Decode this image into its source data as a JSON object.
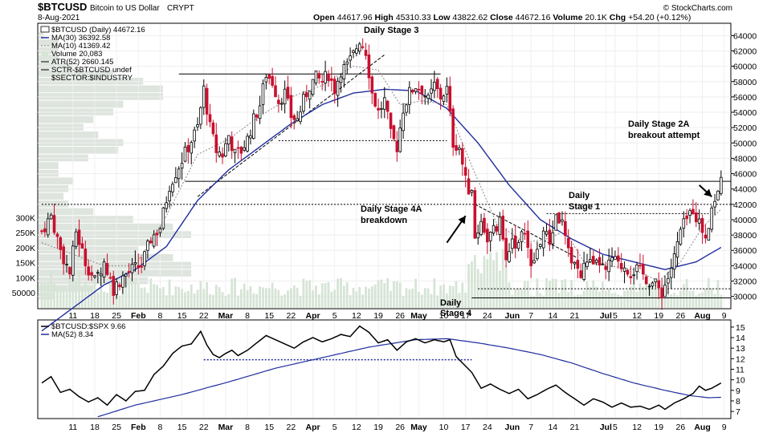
{
  "header": {
    "symbol": "$BTCUSD",
    "name": "Bitcoin to US Dollar",
    "exchange": "CRYPT",
    "date": "8-Aug-2021",
    "open_label": "Open",
    "open": "44617.96",
    "high_label": "High",
    "high": "45310.33",
    "low_label": "Low",
    "low": "43822.62",
    "close_label": "Close",
    "close": "44672.16",
    "volume_label": "Volume",
    "volume": "20.1K",
    "chg_label": "Chg",
    "chg": "+54.20 (+0.12%)",
    "copyright": "© StockCharts.com"
  },
  "legend": {
    "price": "$BTCUSD (Daily) 44672.16",
    "ma30": "MA(30) 36392.58",
    "ma10": "MA(10) 41369.42",
    "volume": "Volume 20,083",
    "atr": "ATR(52) 2660.145",
    "sctr": "SCTR-$BTCUSD undef",
    "sector": "$SECTOR:$INDUSTRY"
  },
  "lower_legend": {
    "ratio": "$BTCUSD:$SPX 9.66",
    "ma52": "MA(52) 8.34"
  },
  "annotations": {
    "stage3": "Daily Stage 3",
    "stage4a_1": "Daily Stage 4A",
    "stage4a_2": "breakdown",
    "stage1_1": "Daily",
    "stage1_2": "Stage 1",
    "stage2a_1": "Daily Stage 2A",
    "stage2a_2": "breakout attempt",
    "stage4_1": "Daily",
    "stage4_2": "Stage 4"
  },
  "colors": {
    "up": "#000000",
    "down": "#c8102e",
    "ma30": "#1f2d9e",
    "ma10": "#888888",
    "volume": "#d6e4d6",
    "vbp": "#d0d8d0"
  },
  "chart_data": [
    {
      "type": "candlestick",
      "title": "$BTCUSD (Daily)",
      "ylim": [
        28500,
        65500
      ],
      "y_ticks": [
        30000,
        32000,
        34000,
        36000,
        38000,
        40000,
        42000,
        44000,
        46000,
        48000,
        50000,
        52000,
        54000,
        56000,
        58000,
        60000,
        62000,
        64000
      ],
      "x_ticks": [
        {
          "label": "11",
          "day": 10
        },
        {
          "label": "18",
          "day": 17
        },
        {
          "label": "25",
          "day": 24
        },
        {
          "label": "Feb",
          "day": 31,
          "bold": true
        },
        {
          "label": "8",
          "day": 38
        },
        {
          "label": "15",
          "day": 45
        },
        {
          "label": "22",
          "day": 52
        },
        {
          "label": "Mar",
          "day": 59,
          "bold": true
        },
        {
          "label": "8",
          "day": 66
        },
        {
          "label": "15",
          "day": 73
        },
        {
          "label": "22",
          "day": 80
        },
        {
          "label": "Apr",
          "day": 87,
          "bold": true
        },
        {
          "label": "5",
          "day": 94
        },
        {
          "label": "12",
          "day": 101
        },
        {
          "label": "19",
          "day": 108
        },
        {
          "label": "26",
          "day": 115
        },
        {
          "label": "May",
          "day": 121,
          "bold": true
        },
        {
          "label": "10",
          "day": 129
        },
        {
          "label": "17",
          "day": 136
        },
        {
          "label": "24",
          "day": 143
        },
        {
          "label": "Jun",
          "day": 151,
          "bold": true
        },
        {
          "label": "7",
          "day": 157
        },
        {
          "label": "14",
          "day": 164
        },
        {
          "label": "21",
          "day": 171
        },
        {
          "label": "Jul",
          "day": 181,
          "bold": true
        },
        {
          "label": "5",
          "day": 184
        },
        {
          "label": "12",
          "day": 191
        },
        {
          "label": "19",
          "day": 198
        },
        {
          "label": "26",
          "day": 205
        },
        {
          "label": "Aug",
          "day": 212,
          "bold": true
        },
        {
          "label": "9",
          "day": 219
        }
      ],
      "anchors": [
        [
          0,
          38500
        ],
        [
          3,
          40500
        ],
        [
          6,
          36000
        ],
        [
          9,
          33000
        ],
        [
          11,
          38500
        ],
        [
          14,
          34500
        ],
        [
          17,
          32000
        ],
        [
          20,
          34500
        ],
        [
          23,
          31000
        ],
        [
          26,
          32500
        ],
        [
          29,
          33500
        ],
        [
          32,
          34000
        ],
        [
          35,
          37500
        ],
        [
          38,
          39000
        ],
        [
          41,
          44500
        ],
        [
          44,
          47000
        ],
        [
          47,
          49500
        ],
        [
          50,
          52000
        ],
        [
          52,
          57000
        ],
        [
          54,
          52000
        ],
        [
          56,
          49000
        ],
        [
          58,
          48500
        ],
        [
          60,
          51000
        ],
        [
          62,
          48500
        ],
        [
          64,
          49000
        ],
        [
          66,
          50500
        ],
        [
          68,
          53000
        ],
        [
          70,
          55000
        ],
        [
          72,
          59000
        ],
        [
          74,
          58000
        ],
        [
          76,
          55500
        ],
        [
          78,
          56500
        ],
        [
          80,
          53500
        ],
        [
          82,
          53000
        ],
        [
          84,
          55500
        ],
        [
          86,
          57500
        ],
        [
          88,
          58500
        ],
        [
          90,
          58000
        ],
        [
          92,
          59000
        ],
        [
          94,
          57000
        ],
        [
          96,
          59500
        ],
        [
          98,
          60000
        ],
        [
          100,
          61500
        ],
        [
          102,
          63500
        ],
        [
          104,
          62000
        ],
        [
          106,
          56500
        ],
        [
          108,
          54000
        ],
        [
          110,
          55500
        ],
        [
          112,
          51000
        ],
        [
          114,
          49500
        ],
        [
          116,
          54500
        ],
        [
          118,
          56500
        ],
        [
          120,
          57500
        ],
        [
          122,
          57000
        ],
        [
          124,
          55500
        ],
        [
          126,
          57500
        ],
        [
          128,
          56000
        ],
        [
          130,
          57000
        ],
        [
          132,
          50000
        ],
        [
          134,
          49500
        ],
        [
          136,
          45000
        ],
        [
          138,
          43000
        ],
        [
          139,
          37500
        ],
        [
          141,
          40000
        ],
        [
          143,
          37500
        ],
        [
          145,
          38500
        ],
        [
          147,
          39500
        ],
        [
          149,
          35500
        ],
        [
          151,
          37500
        ],
        [
          153,
          36500
        ],
        [
          155,
          39000
        ],
        [
          157,
          33500
        ],
        [
          159,
          36000
        ],
        [
          161,
          38500
        ],
        [
          163,
          37000
        ],
        [
          165,
          40500
        ],
        [
          167,
          39500
        ],
        [
          169,
          35500
        ],
        [
          171,
          34500
        ],
        [
          173,
          32500
        ],
        [
          175,
          35000
        ],
        [
          177,
          33500
        ],
        [
          179,
          34500
        ],
        [
          181,
          33000
        ],
        [
          183,
          35000
        ],
        [
          185,
          34000
        ],
        [
          187,
          34000
        ],
        [
          189,
          33200
        ],
        [
          191,
          33500
        ],
        [
          193,
          32800
        ],
        [
          195,
          32000
        ],
        [
          197,
          31500
        ],
        [
          199,
          30500
        ],
        [
          201,
          32500
        ],
        [
          203,
          35000
        ],
        [
          205,
          38500
        ],
        [
          207,
          40000
        ],
        [
          209,
          41500
        ],
        [
          211,
          39500
        ],
        [
          213,
          38000
        ],
        [
          215,
          41500
        ],
        [
          217,
          44000
        ],
        [
          218,
          44672
        ]
      ],
      "ma30_anchors": [
        [
          0,
          25500
        ],
        [
          10,
          28500
        ],
        [
          20,
          31500
        ],
        [
          30,
          33500
        ],
        [
          40,
          36500
        ],
        [
          50,
          42500
        ],
        [
          60,
          46500
        ],
        [
          70,
          49500
        ],
        [
          80,
          52500
        ],
        [
          90,
          55000
        ],
        [
          100,
          56500
        ],
        [
          110,
          57000
        ],
        [
          120,
          56800
        ],
        [
          130,
          54500
        ],
        [
          140,
          50000
        ],
        [
          150,
          44500
        ],
        [
          160,
          40000
        ],
        [
          170,
          37500
        ],
        [
          180,
          35500
        ],
        [
          190,
          34500
        ],
        [
          200,
          33500
        ],
        [
          210,
          34500
        ],
        [
          218,
          36392
        ]
      ],
      "ma10_anchors": [
        [
          0,
          37000
        ],
        [
          10,
          35500
        ],
        [
          20,
          34000
        ],
        [
          30,
          34000
        ],
        [
          40,
          40500
        ],
        [
          50,
          48500
        ],
        [
          60,
          50500
        ],
        [
          70,
          53500
        ],
        [
          80,
          56000
        ],
        [
          90,
          57500
        ],
        [
          100,
          60000
        ],
        [
          108,
          59500
        ],
        [
          115,
          55000
        ],
        [
          122,
          55500
        ],
        [
          130,
          55000
        ],
        [
          138,
          47000
        ],
        [
          146,
          39500
        ],
        [
          155,
          37000
        ],
        [
          162,
          37500
        ],
        [
          168,
          38500
        ],
        [
          174,
          34500
        ],
        [
          182,
          34000
        ],
        [
          190,
          33500
        ],
        [
          198,
          32000
        ],
        [
          205,
          34500
        ],
        [
          212,
          39000
        ],
        [
          218,
          41369
        ]
      ],
      "volume_scale": {
        "max": 330000,
        "ticks": [
          {
            "label": "300K",
            "value": 300000
          },
          {
            "label": "250K",
            "value": 250000
          },
          {
            "label": "200K",
            "value": 200000
          },
          {
            "label": "150K",
            "value": 150000
          },
          {
            "label": "100K",
            "value": 100000
          },
          {
            "label": "50000",
            "value": 50000
          }
        ]
      },
      "horizontal_levels": [
        {
          "style": "solid",
          "value": 59000,
          "from_day": 44,
          "to_day": 128
        },
        {
          "style": "solid",
          "value": 45000,
          "from_day": 46,
          "to_day": 222
        },
        {
          "style": "solid",
          "value": 29800,
          "from_day": 138,
          "to_day": 222
        },
        {
          "style": "dotted",
          "value": 42000,
          "from_day": 0,
          "to_day": 222
        },
        {
          "style": "dotted",
          "value": 50300,
          "from_day": 76,
          "to_day": 130
        },
        {
          "style": "dotted",
          "value": 40800,
          "from_day": 162,
          "to_day": 214
        },
        {
          "style": "dotted",
          "value": 31000,
          "from_day": 140,
          "to_day": 222
        }
      ],
      "trendlines": [
        {
          "style": "dashed",
          "from": [
            50,
            43000
          ],
          "to": [
            110,
            61500
          ]
        },
        {
          "style": "dashed",
          "from": [
            139,
            42000
          ],
          "to": [
            172,
            35000
          ]
        }
      ],
      "arrows": [
        {
          "from": [
            130,
            37000
          ],
          "to": [
            136,
            40500
          ]
        },
        {
          "from": [
            211,
            44500
          ],
          "to": [
            215,
            43000
          ]
        }
      ]
    },
    {
      "type": "line",
      "title": "$BTCUSD:$SPX",
      "ylim": [
        6.4,
        15.6
      ],
      "y_ticks": [
        7,
        8,
        9,
        10,
        11,
        12,
        13,
        14,
        15
      ],
      "ratio_anchors": [
        [
          0,
          9.7
        ],
        [
          3,
          10.3
        ],
        [
          6,
          8.8
        ],
        [
          9,
          9.1
        ],
        [
          12,
          8.4
        ],
        [
          15,
          7.9
        ],
        [
          18,
          8.3
        ],
        [
          21,
          7.6
        ],
        [
          24,
          8.6
        ],
        [
          27,
          8.0
        ],
        [
          30,
          8.9
        ],
        [
          33,
          9.0
        ],
        [
          36,
          10.5
        ],
        [
          39,
          11.3
        ],
        [
          42,
          12.5
        ],
        [
          45,
          13.2
        ],
        [
          48,
          13.4
        ],
        [
          51,
          14.6
        ],
        [
          53,
          13.3
        ],
        [
          55,
          12.4
        ],
        [
          57,
          12.1
        ],
        [
          59,
          12.5
        ],
        [
          61,
          12.8
        ],
        [
          63,
          12.3
        ],
        [
          66,
          12.8
        ],
        [
          69,
          13.5
        ],
        [
          72,
          14.2
        ],
        [
          75,
          13.8
        ],
        [
          78,
          13.4
        ],
        [
          81,
          13.0
        ],
        [
          84,
          13.6
        ],
        [
          87,
          14.0
        ],
        [
          90,
          13.6
        ],
        [
          93,
          13.9
        ],
        [
          96,
          14.3
        ],
        [
          99,
          14.1
        ],
        [
          102,
          15.1
        ],
        [
          105,
          14.5
        ],
        [
          108,
          13.5
        ],
        [
          111,
          13.8
        ],
        [
          114,
          12.8
        ],
        [
          117,
          13.6
        ],
        [
          120,
          13.9
        ],
        [
          123,
          13.5
        ],
        [
          126,
          13.8
        ],
        [
          129,
          13.6
        ],
        [
          131,
          13.8
        ],
        [
          133,
          12.2
        ],
        [
          135,
          11.6
        ],
        [
          138,
          10.7
        ],
        [
          141,
          9.2
        ],
        [
          144,
          9.6
        ],
        [
          147,
          9.1
        ],
        [
          150,
          8.7
        ],
        [
          153,
          9.1
        ],
        [
          156,
          8.2
        ],
        [
          159,
          8.6
        ],
        [
          162,
          9.1
        ],
        [
          165,
          9.5
        ],
        [
          168,
          8.8
        ],
        [
          171,
          8.2
        ],
        [
          174,
          7.6
        ],
        [
          177,
          8.2
        ],
        [
          180,
          7.9
        ],
        [
          183,
          7.4
        ],
        [
          186,
          7.8
        ],
        [
          189,
          7.4
        ],
        [
          192,
          7.5
        ],
        [
          195,
          7.2
        ],
        [
          198,
          7.6
        ],
        [
          200,
          7.2
        ],
        [
          203,
          7.8
        ],
        [
          206,
          8.2
        ],
        [
          209,
          8.7
        ],
        [
          211,
          9.4
        ],
        [
          213,
          9.0
        ],
        [
          215,
          9.2
        ],
        [
          218,
          9.7
        ]
      ],
      "ma52_anchors": [
        [
          18,
          6.5
        ],
        [
          30,
          7.6
        ],
        [
          45,
          8.6
        ],
        [
          60,
          9.8
        ],
        [
          75,
          11.1
        ],
        [
          90,
          12.1
        ],
        [
          105,
          13.1
        ],
        [
          120,
          13.8
        ],
        [
          130,
          13.9
        ],
        [
          140,
          13.5
        ],
        [
          150,
          13.0
        ],
        [
          160,
          12.4
        ],
        [
          170,
          11.6
        ],
        [
          180,
          10.6
        ],
        [
          190,
          9.7
        ],
        [
          200,
          9.0
        ],
        [
          208,
          8.5
        ],
        [
          214,
          8.3
        ],
        [
          218,
          8.34
        ]
      ],
      "levels": [
        {
          "style": "dotted",
          "value": 11.9,
          "from_day": 52,
          "to_day": 138
        }
      ]
    }
  ]
}
